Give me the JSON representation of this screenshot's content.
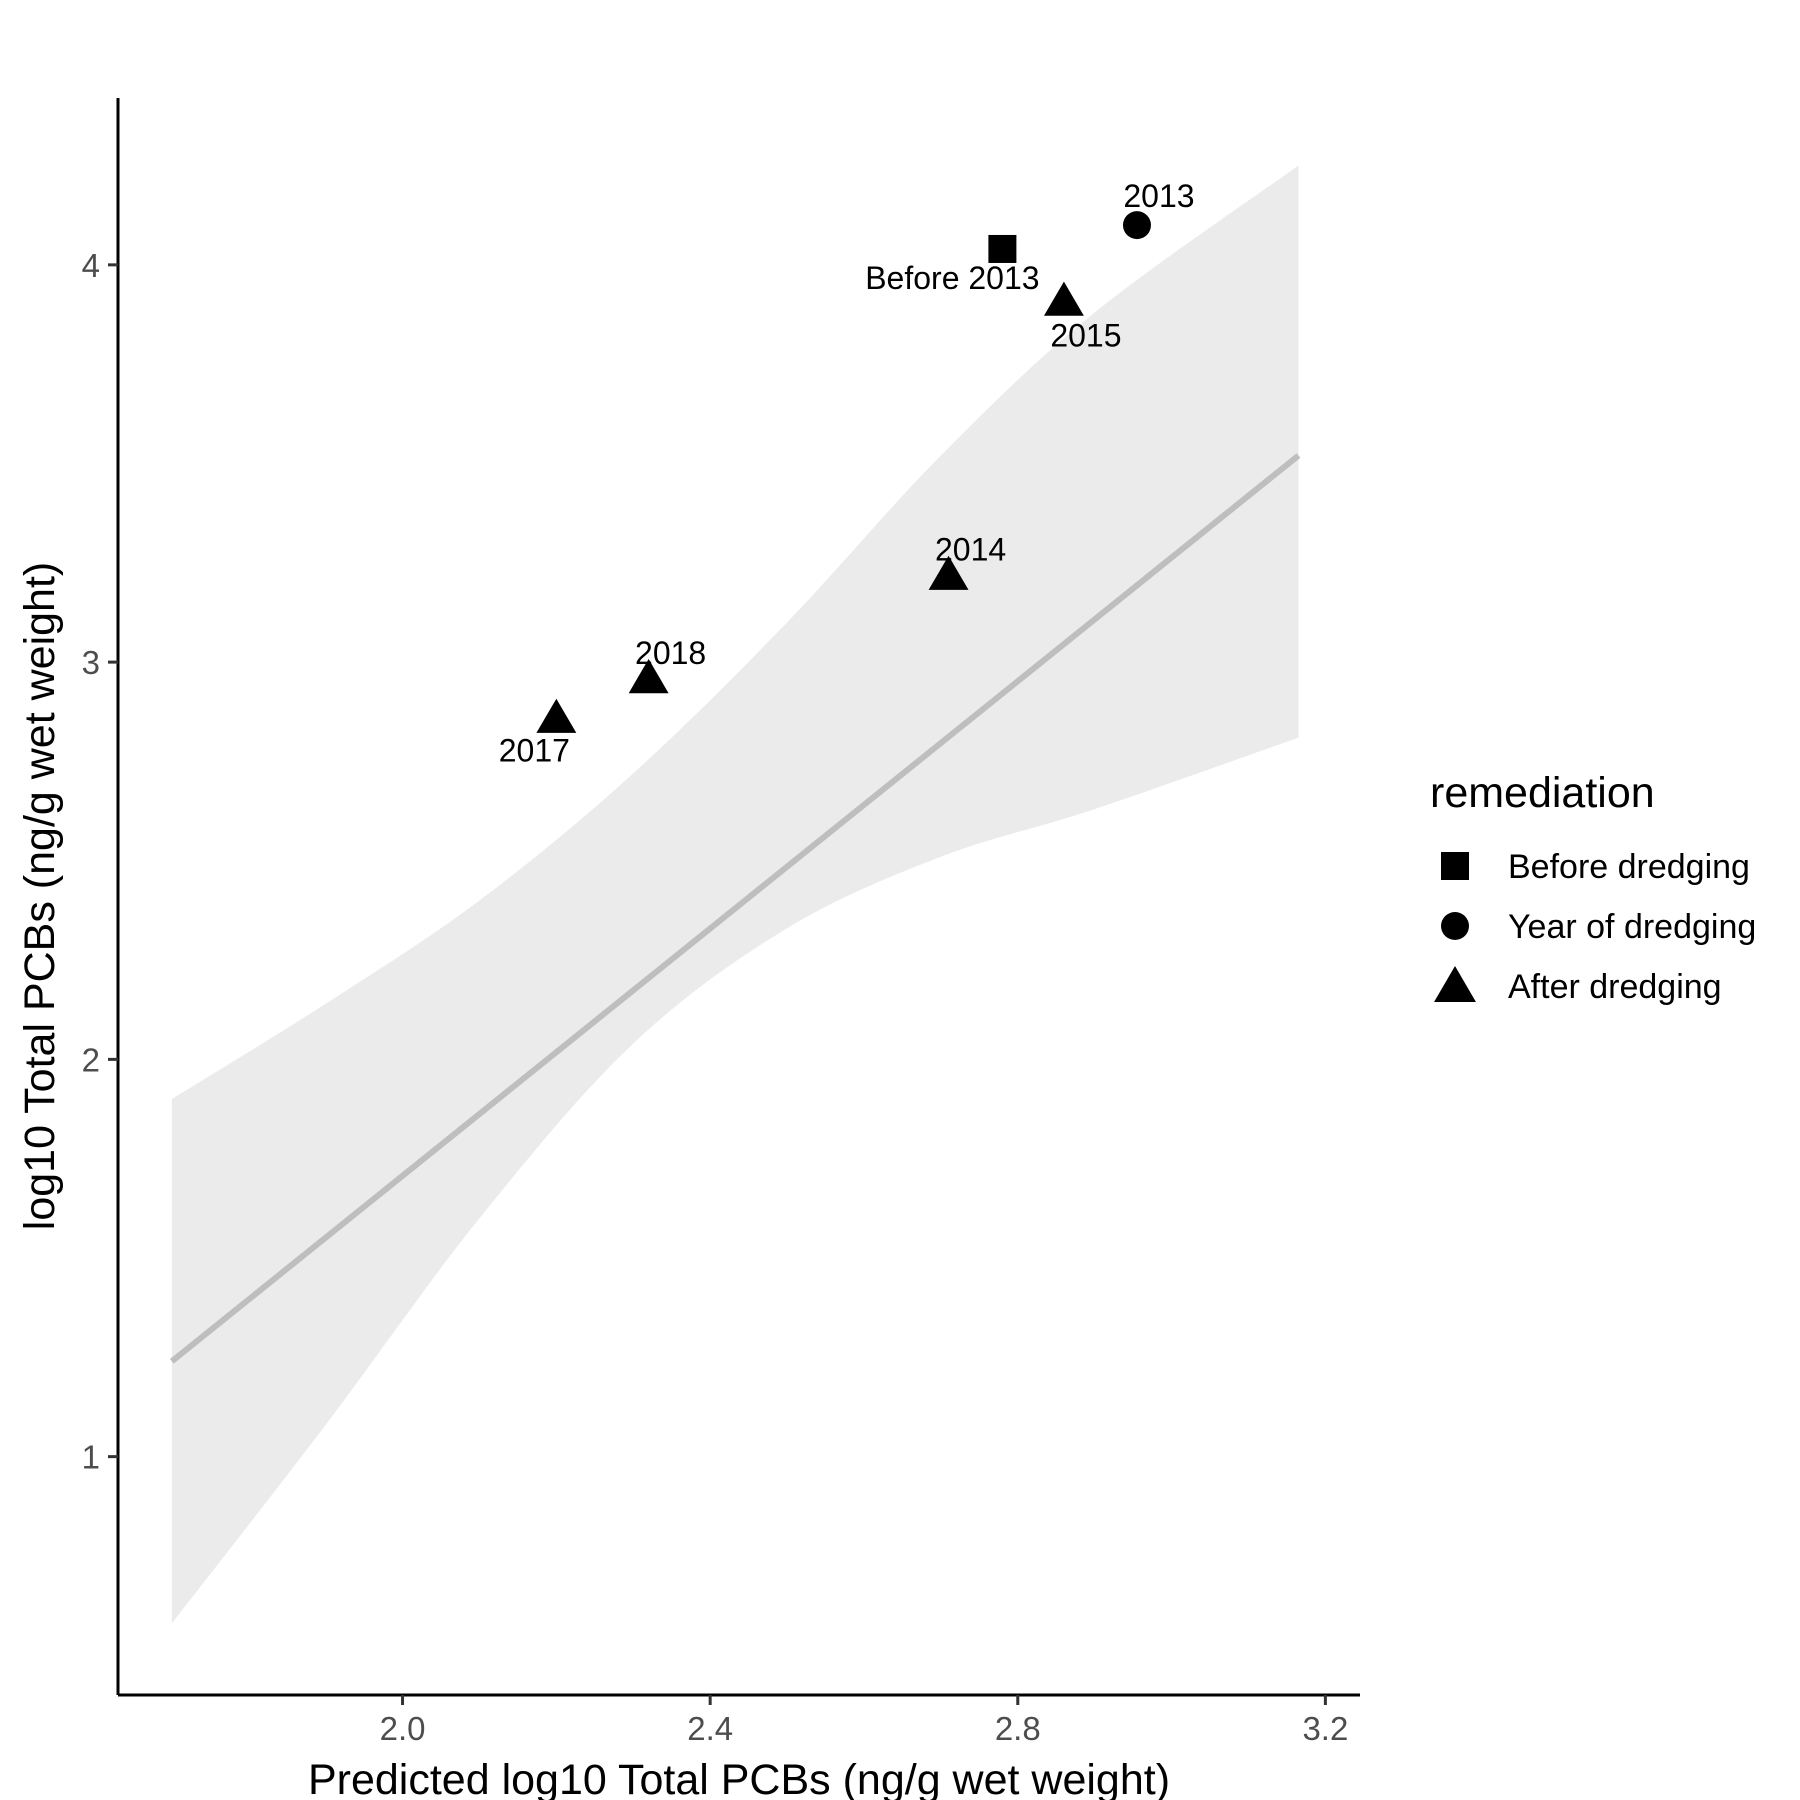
{
  "chart_data": {
    "type": "scatter",
    "xlabel": "Predicted log10 Total PCBs (ng/g wet weight)",
    "ylabel": "log10 Total PCBs (ng/g wet weight)",
    "xlim": [
      1.63,
      3.245
    ],
    "ylim": [
      0.4,
      4.42
    ],
    "x_ticks": [
      "2.0",
      "2.4",
      "2.8",
      "3.2"
    ],
    "y_ticks": [
      "1",
      "2",
      "3",
      "4"
    ],
    "grid": false,
    "points": [
      {
        "x": 2.78,
        "y": 4.04,
        "label": "Before 2013",
        "group": "Before dredging"
      },
      {
        "x": 2.955,
        "y": 4.1,
        "label": "2013",
        "group": "Year of dredging"
      },
      {
        "x": 2.86,
        "y": 3.91,
        "label": "2015",
        "group": "After dredging"
      },
      {
        "x": 2.71,
        "y": 3.22,
        "label": "2014",
        "group": "After dredging"
      },
      {
        "x": 2.32,
        "y": 2.96,
        "label": "2018",
        "group": "After dredging"
      },
      {
        "x": 2.2,
        "y": 2.86,
        "label": "2017",
        "group": "After dredging"
      }
    ],
    "fit_line": {
      "x": [
        1.7,
        3.165
      ],
      "y": [
        1.24,
        3.52
      ],
      "color": "#bebebe"
    },
    "confidence_band": {
      "color": "#ebebeb",
      "x": [
        1.7,
        1.9,
        2.1,
        2.3,
        2.5,
        2.7,
        2.9,
        3.165
      ],
      "upper": [
        1.9,
        2.14,
        2.4,
        2.72,
        3.1,
        3.52,
        3.88,
        4.25
      ],
      "lower": [
        0.58,
        1.08,
        1.6,
        2.04,
        2.33,
        2.51,
        2.63,
        2.81
      ]
    },
    "legend": {
      "title": "remediation",
      "position": "right",
      "entries": [
        {
          "label": "Before dredging",
          "shape": "square"
        },
        {
          "label": "Year of dredging",
          "shape": "circle"
        },
        {
          "label": "After dredging",
          "shape": "triangle"
        }
      ]
    }
  }
}
